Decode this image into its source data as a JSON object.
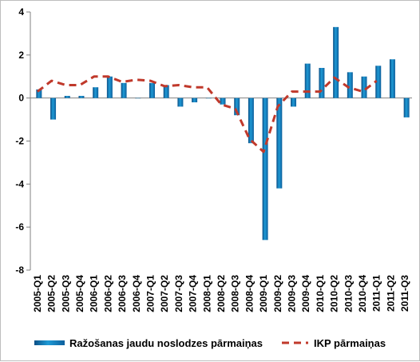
{
  "chart_data": {
    "type": "bar",
    "title": "",
    "xlabel": "",
    "ylabel": "",
    "ylim": [
      -8,
      4
    ],
    "yticks": [
      4,
      2,
      0,
      -2,
      -4,
      -6,
      -8
    ],
    "grid": false,
    "legend_position": "bottom",
    "categories": [
      "2005-Q1",
      "2005-Q2",
      "2005-Q3",
      "2005-Q4",
      "2006-Q1",
      "2006-Q2",
      "2006-Q3",
      "2006-Q4",
      "2007-Q1",
      "2007-Q2",
      "2007-Q3",
      "2007-Q4",
      "2008-Q1",
      "2008-Q2",
      "2008-Q3",
      "2008-Q4",
      "2009-Q1",
      "2009-Q2",
      "2009-Q3",
      "2009-Q4",
      "2010-Q1",
      "2010-Q2",
      "2010-Q3",
      "2010-Q4",
      "2011-Q1",
      "2011-Q2",
      "2011-Q3"
    ],
    "series": [
      {
        "name": "Ražošanas jaudu noslodzes pārmaiņas",
        "type": "bar",
        "color": "#1e88c8",
        "values": [
          0.4,
          -1.0,
          0.1,
          0.1,
          0.5,
          1.0,
          0.7,
          0.0,
          0.7,
          0.6,
          -0.4,
          -0.2,
          0.0,
          -0.3,
          -0.8,
          -2.1,
          -6.6,
          -4.2,
          -0.4,
          1.6,
          1.4,
          3.3,
          1.2,
          1.0,
          1.5,
          1.8,
          -0.9
        ]
      },
      {
        "name": "IKP pārmaiņas",
        "type": "line",
        "style": "dashed",
        "color": "#c0392b",
        "values": [
          0.3,
          0.8,
          0.6,
          0.6,
          1.0,
          1.0,
          0.75,
          0.85,
          0.8,
          0.55,
          0.6,
          0.5,
          0.5,
          -0.3,
          -0.5,
          -1.9,
          -2.5,
          -0.4,
          0.3,
          0.3,
          0.3,
          0.95,
          0.5,
          0.3,
          0.8,
          null,
          null
        ]
      }
    ]
  }
}
